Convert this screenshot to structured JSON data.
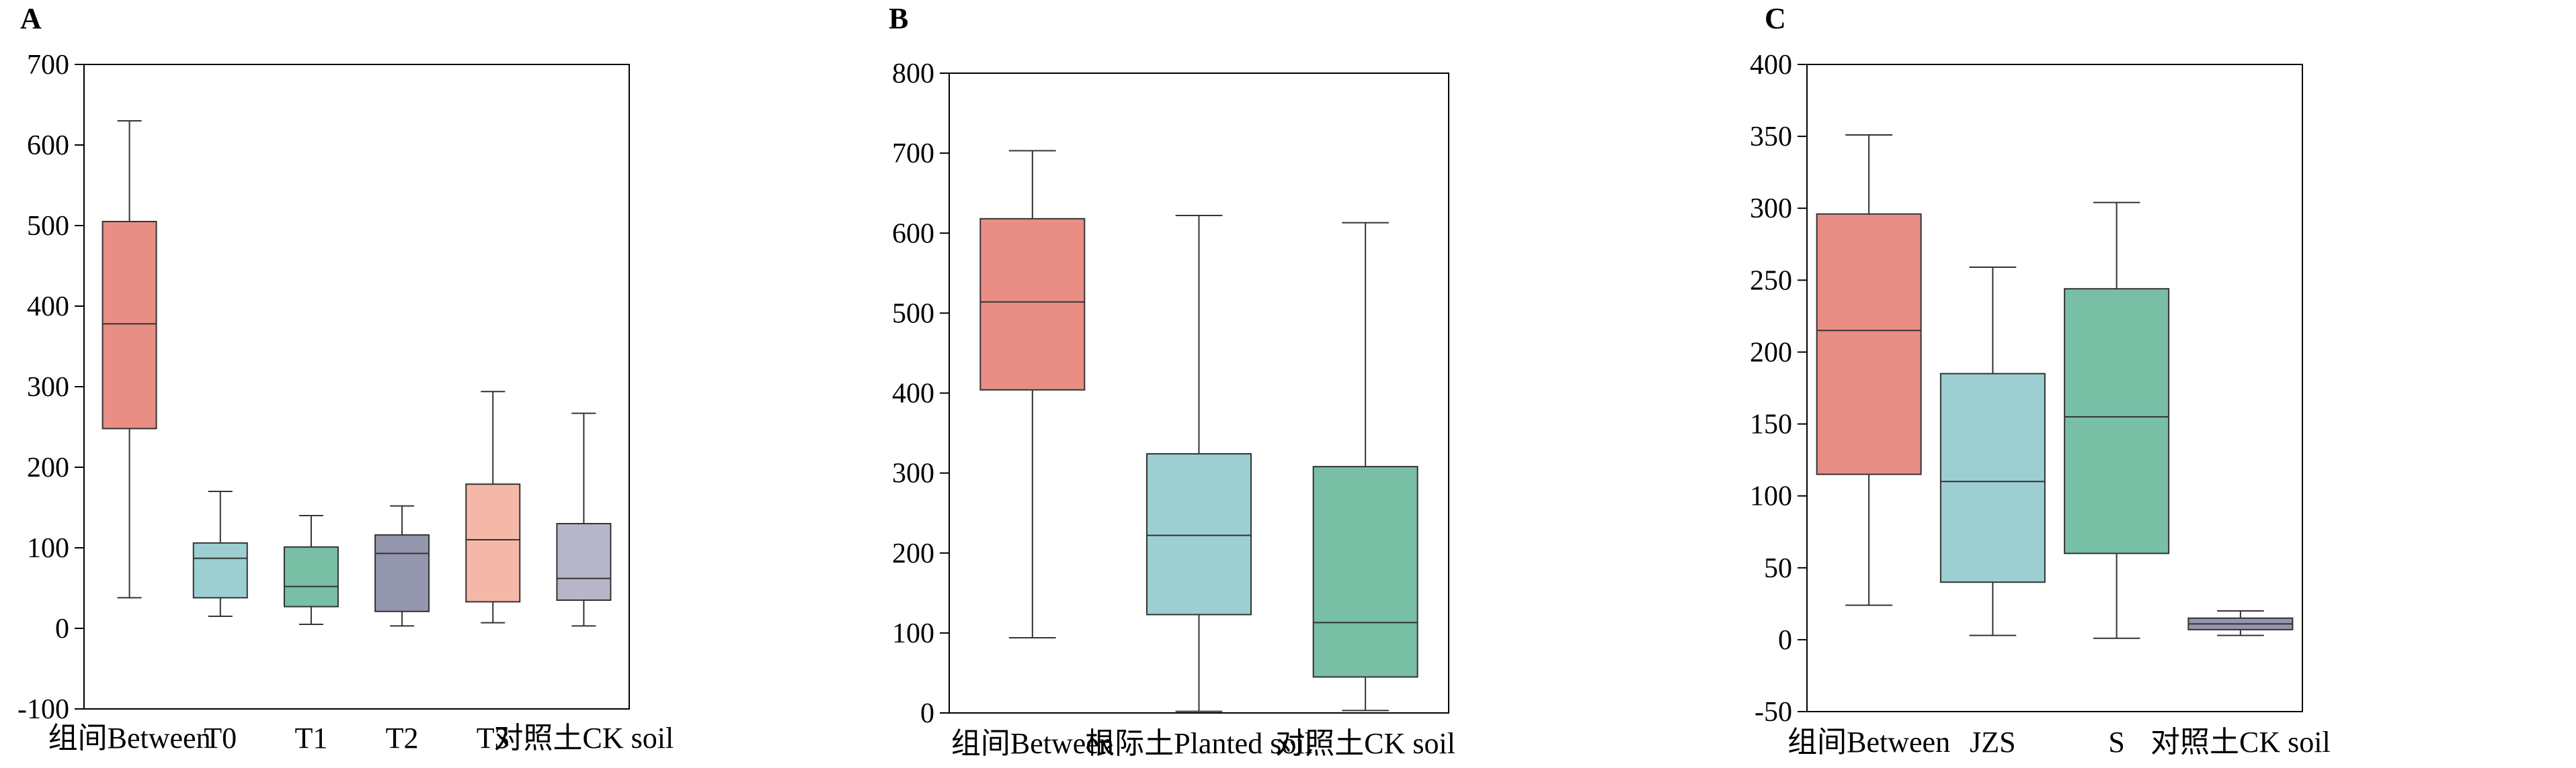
{
  "chart_data": [
    {
      "type": "box",
      "panel": "A",
      "ylim": [
        -100,
        700
      ],
      "yticks": [
        -100,
        0,
        100,
        200,
        300,
        400,
        500,
        600,
        700
      ],
      "categories": [
        "组间Between",
        "T0",
        "T1",
        "T2",
        "T3",
        "对照土CK soil"
      ],
      "boxes": [
        {
          "min": 38,
          "q1": 248,
          "median": 378,
          "q3": 505,
          "max": 630,
          "color": "#E88E84"
        },
        {
          "min": 15,
          "q1": 38,
          "median": 87,
          "q3": 106,
          "max": 170,
          "color": "#9DCFD2"
        },
        {
          "min": 5,
          "q1": 27,
          "median": 52,
          "q3": 101,
          "max": 140,
          "color": "#78BFA6"
        },
        {
          "min": 3,
          "q1": 21,
          "median": 93,
          "q3": 116,
          "max": 152,
          "color": "#9396AC"
        },
        {
          "min": 7,
          "q1": 33,
          "median": 110,
          "q3": 179,
          "max": 294,
          "color": "#F5B8A8"
        },
        {
          "min": 3,
          "q1": 35,
          "median": 62,
          "q3": 130,
          "max": 267,
          "color": "#B6B6C8"
        }
      ]
    },
    {
      "type": "box",
      "panel": "B",
      "ylim": [
        0,
        800
      ],
      "yticks": [
        0,
        100,
        200,
        300,
        400,
        500,
        600,
        700,
        800
      ],
      "categories": [
        "组间Between",
        "根际土Planted soil",
        "对照土CK soil"
      ],
      "boxes": [
        {
          "min": 94,
          "q1": 404,
          "median": 514,
          "q3": 618,
          "max": 703,
          "color": "#E88E84"
        },
        {
          "min": 2,
          "q1": 123,
          "median": 222,
          "q3": 324,
          "max": 622,
          "color": "#9DCFD2"
        },
        {
          "min": 3,
          "q1": 45,
          "median": 113,
          "q3": 308,
          "max": 613,
          "color": "#78BFA6"
        }
      ]
    },
    {
      "type": "box",
      "panel": "C",
      "ylim": [
        -50,
        400
      ],
      "yticks": [
        -50,
        0,
        50,
        100,
        150,
        200,
        250,
        300,
        350,
        400
      ],
      "categories": [
        "组间Between",
        "JZS",
        "S",
        "对照土CK soil"
      ],
      "boxes": [
        {
          "min": 24,
          "q1": 115,
          "median": 215,
          "q3": 296,
          "max": 351,
          "color": "#E88E84"
        },
        {
          "min": 3,
          "q1": 40,
          "median": 110,
          "q3": 185,
          "max": 259,
          "color": "#9DCFD2"
        },
        {
          "min": 1,
          "q1": 60,
          "median": 155,
          "q3": 244,
          "max": 304,
          "color": "#78BFA6"
        },
        {
          "min": 3,
          "q1": 7,
          "median": 11,
          "q3": 15,
          "max": 20,
          "color": "#9396AC"
        }
      ]
    }
  ]
}
